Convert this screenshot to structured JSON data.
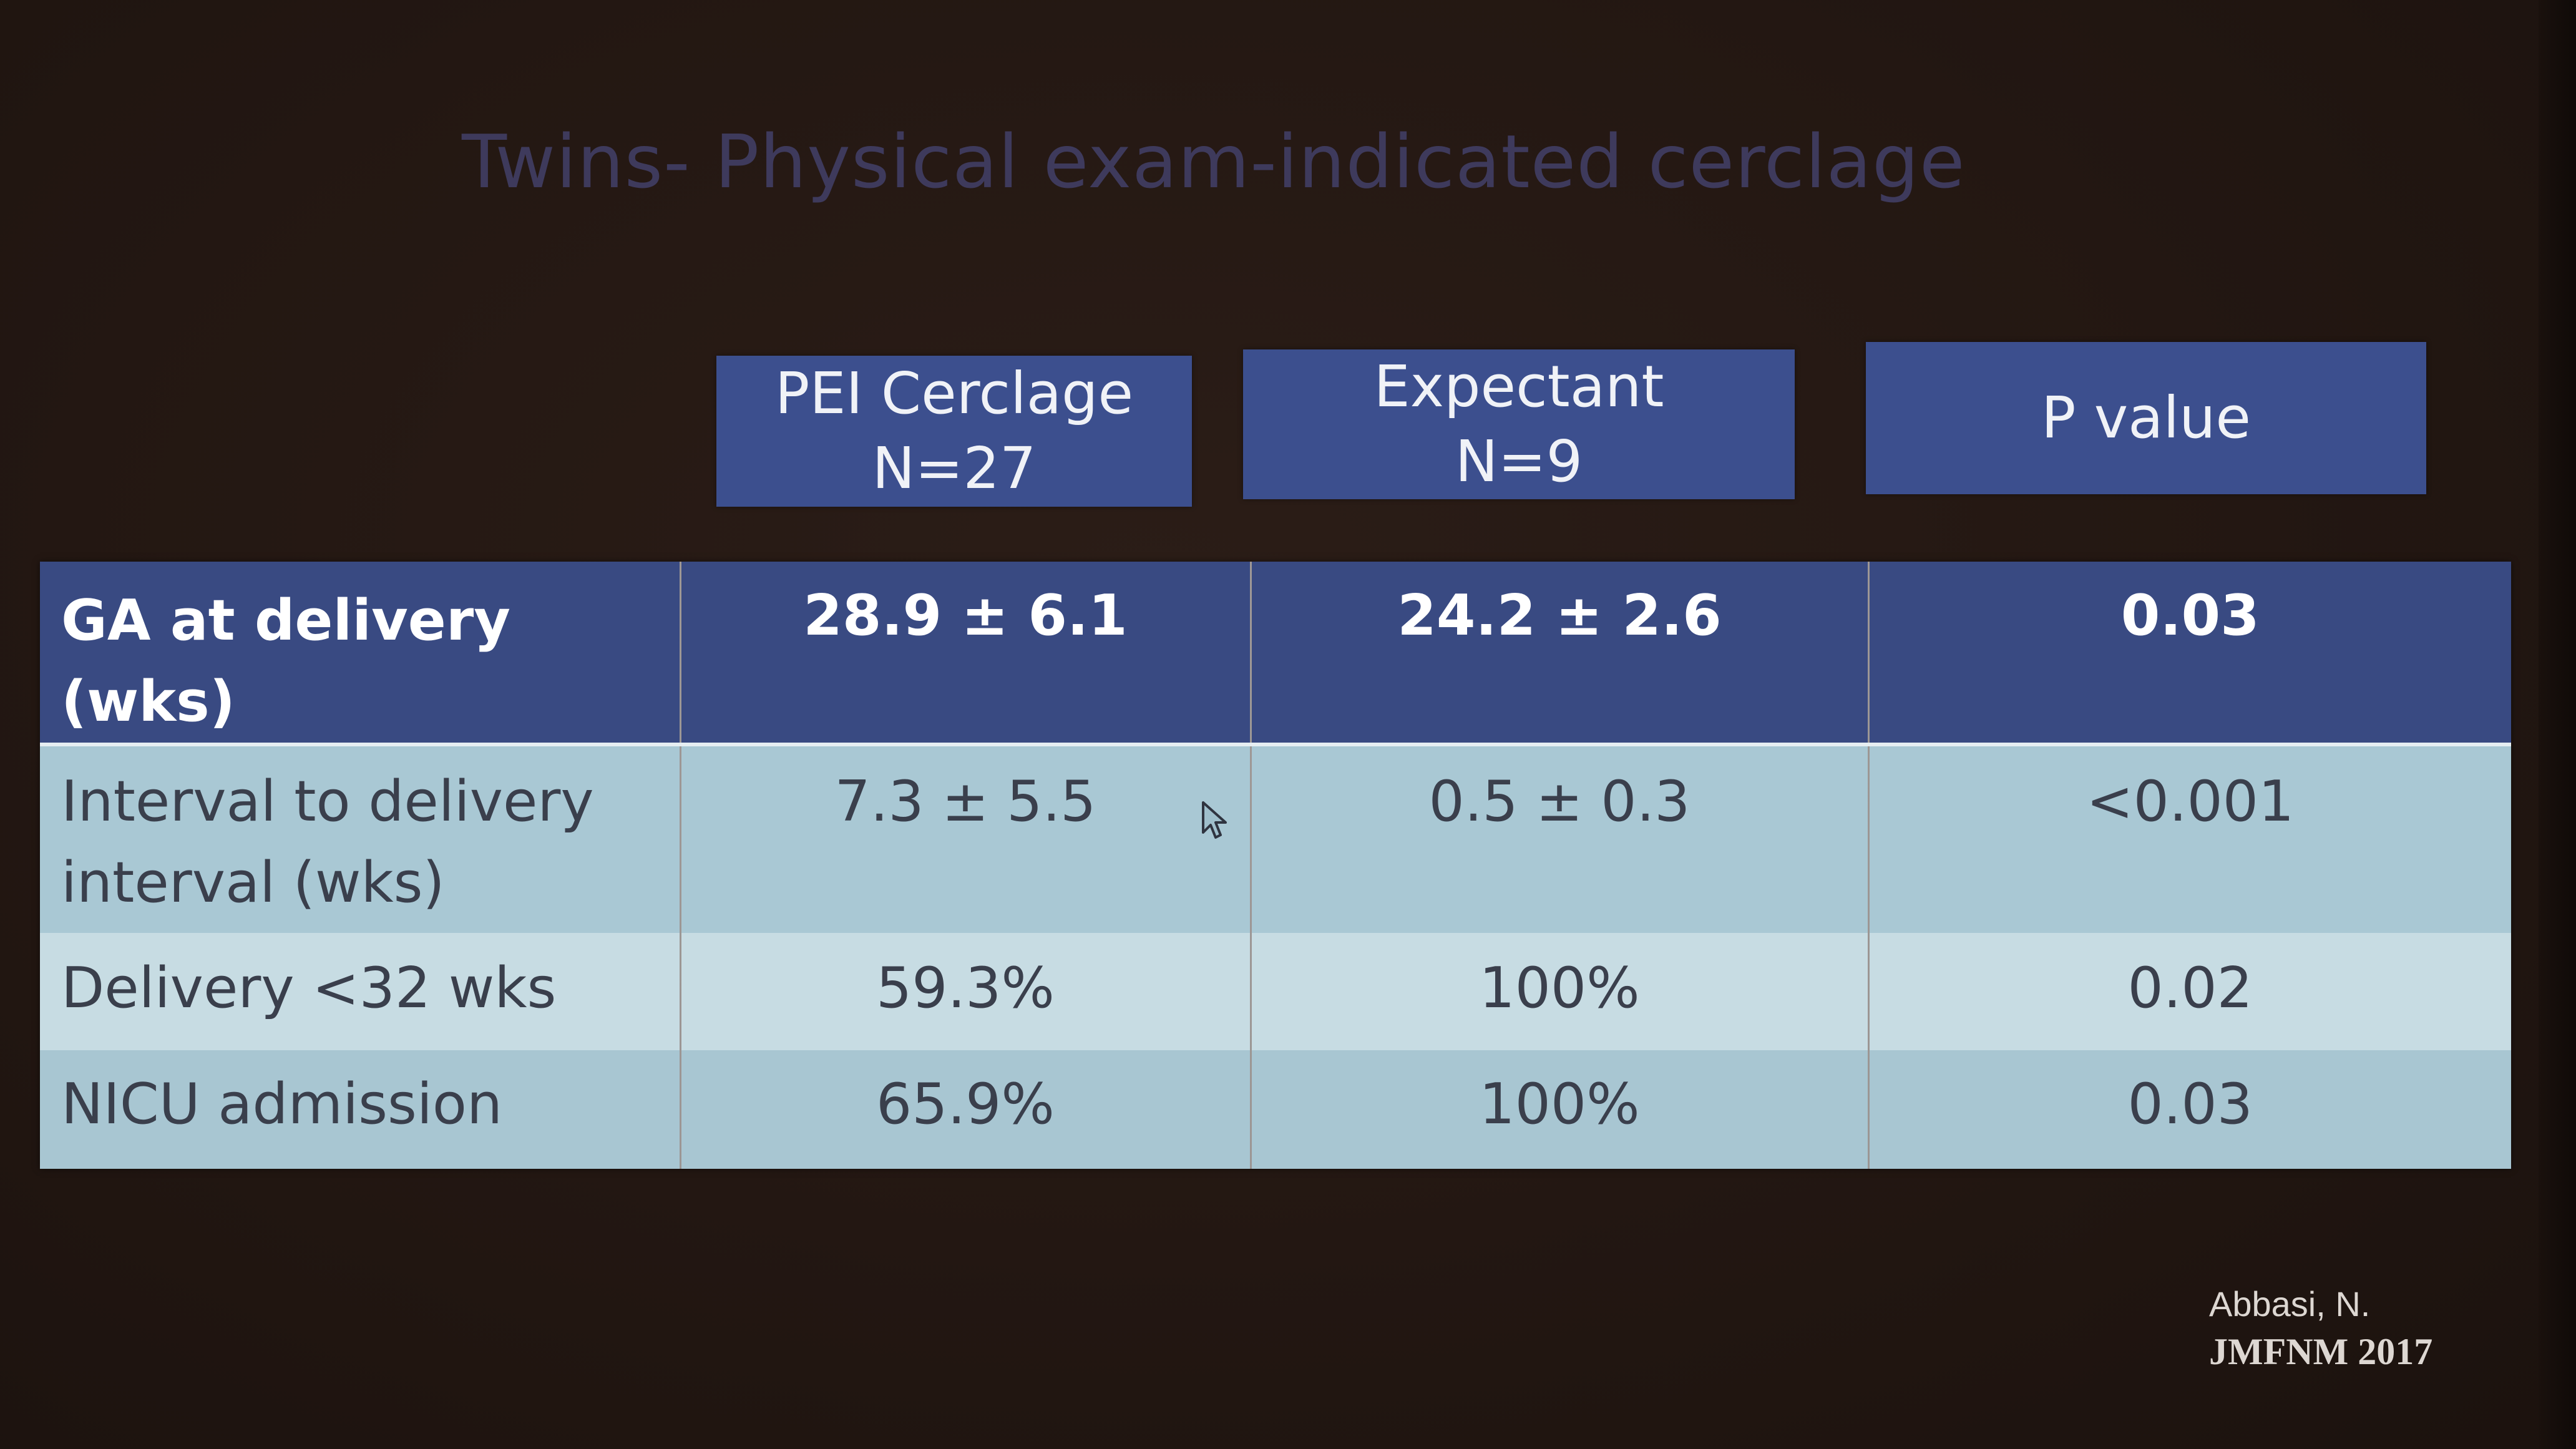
{
  "slide": {
    "title": "Twins- Physical exam-indicated cerclage"
  },
  "column_headers": {
    "pei": {
      "line1": "PEI Cerclage",
      "line2": "N=27"
    },
    "expectant": {
      "line1": "Expectant",
      "line2": "N=9"
    },
    "pvalue": {
      "line1": "P value"
    }
  },
  "rows": [
    {
      "label_line1": "GA at delivery",
      "label_line2": "(wks)",
      "pei": "28.9 ± 6.1",
      "expectant": "24.2 ± 2.6",
      "p": "0.03"
    },
    {
      "label_line1": "Interval to delivery",
      "label_line2": "interval (wks)",
      "pei": "7.3 ± 5.5",
      "expectant": "0.5 ± 0.3",
      "p": "<0.001"
    },
    {
      "label_line1": "Delivery <32 wks",
      "label_line2": "",
      "pei": "59.3%",
      "expectant": "100%",
      "p": "0.02"
    },
    {
      "label_line1": "NICU admission",
      "label_line2": "",
      "pei": "65.9%",
      "expectant": "100%",
      "p": "0.03"
    }
  ],
  "citation": {
    "author": "Abbasi, N.",
    "journal": "JMFNM 2017"
  },
  "icons": {
    "cursor": "mouse-pointer-icon"
  },
  "colors": {
    "background": "#231712",
    "header_fill": "#3c4f8e",
    "head_row_fill": "#394a82",
    "row_fill_a": "#a9c8d4",
    "row_fill_b": "#c7dce3",
    "title_text": "#3e3a5c"
  }
}
